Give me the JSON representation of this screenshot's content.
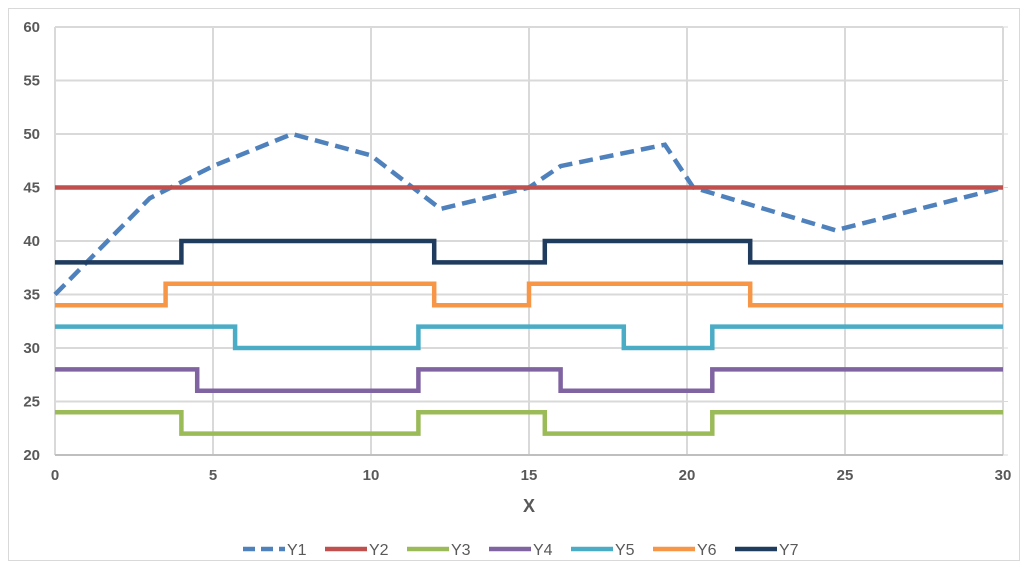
{
  "chart_data": {
    "type": "line",
    "title": "",
    "xlabel": "X",
    "ylabel": "",
    "xlim": [
      0,
      30
    ],
    "ylim": [
      20,
      60
    ],
    "xticks": [
      0,
      5,
      10,
      15,
      20,
      25,
      30
    ],
    "yticks": [
      20,
      25,
      30,
      35,
      40,
      45,
      50,
      55,
      60
    ],
    "grid": true,
    "legend_position": "bottom",
    "series": [
      {
        "name": "Y1",
        "color": "#4F81BD",
        "style": "dashed",
        "step": false,
        "x": [
          0,
          3,
          5,
          7.5,
          10,
          12.2,
          15,
          16,
          19.3,
          20.2,
          24.7,
          30
        ],
        "y": [
          35,
          44,
          47,
          50,
          48,
          43,
          45,
          47,
          49,
          45,
          41,
          45
        ]
      },
      {
        "name": "Y2",
        "color": "#C0504D",
        "style": "solid",
        "step": false,
        "x": [
          0,
          30
        ],
        "y": [
          45,
          45
        ]
      },
      {
        "name": "Y3",
        "color": "#9BBB59",
        "style": "solid",
        "step": true,
        "x": [
          0,
          4,
          11.5,
          15.5,
          20.8,
          30
        ],
        "y": [
          24,
          22,
          24,
          22,
          24,
          24
        ]
      },
      {
        "name": "Y4",
        "color": "#8064A2",
        "style": "solid",
        "step": true,
        "x": [
          0,
          4.5,
          11.5,
          16,
          20.8,
          30
        ],
        "y": [
          28,
          26,
          28,
          26,
          28,
          28
        ]
      },
      {
        "name": "Y5",
        "color": "#4BACC6",
        "style": "solid",
        "step": true,
        "x": [
          0,
          5.7,
          11.5,
          18,
          20.8,
          30
        ],
        "y": [
          32,
          30,
          32,
          30,
          32,
          32
        ]
      },
      {
        "name": "Y6",
        "color": "#F79646",
        "style": "solid",
        "step": true,
        "x": [
          0,
          3.5,
          12,
          15,
          22,
          30
        ],
        "y": [
          34,
          36,
          34,
          36,
          34,
          34
        ]
      },
      {
        "name": "Y7",
        "color": "#1F3B5E",
        "style": "solid",
        "step": true,
        "x": [
          0,
          4,
          12,
          15.5,
          22,
          30
        ],
        "y": [
          38,
          40,
          38,
          40,
          38,
          38
        ]
      }
    ]
  }
}
